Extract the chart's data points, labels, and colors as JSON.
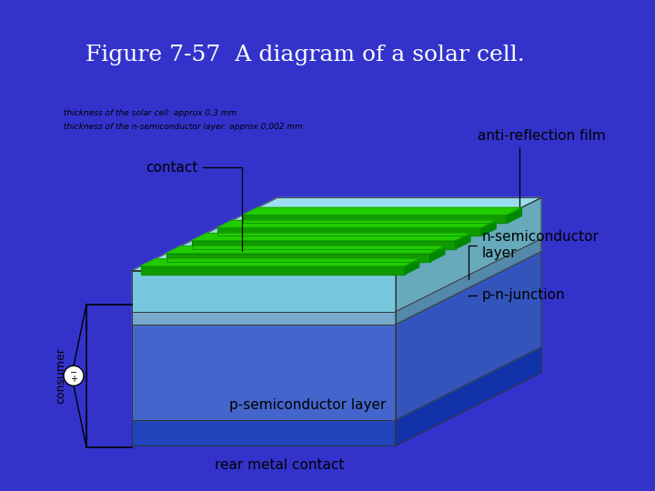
{
  "title": "Figure 7-57  A diagram of a solar cell.",
  "title_color": "#ffffff",
  "title_bg_color": "#3333cc",
  "bg_color": "#e8e8e8",
  "small_text_line1": "thickness of the solar cell: approx 0,3 mm",
  "small_text_line2": "thickness of the n-semiconductor layer: approx 0,002 mm",
  "labels": {
    "anti_reflection_film": "anti-reflection film",
    "contact": "contact",
    "n_semiconductor": "n-semiconductor\nlayer",
    "p_n_junction": "p-n-junction",
    "p_semiconductor": "p-semiconductor layer",
    "rear_metal": "rear metal contact",
    "consumer": "consumer"
  },
  "c_anti_top": "#99ddee",
  "c_anti_front": "#77c8de",
  "c_anti_side": "#66aabb",
  "c_n_top": "#88bbdd",
  "c_n_front": "#77aacc",
  "c_n_side": "#5588aa",
  "c_p_top": "#5577dd",
  "c_p_front": "#4466cc",
  "c_p_side": "#3355bb",
  "c_rear_top": "#3355cc",
  "c_rear_front": "#2244bb",
  "c_rear_side": "#1133aa",
  "c_green": "#22cc00",
  "c_green_dark": "#119900",
  "c_green_side": "#008800"
}
